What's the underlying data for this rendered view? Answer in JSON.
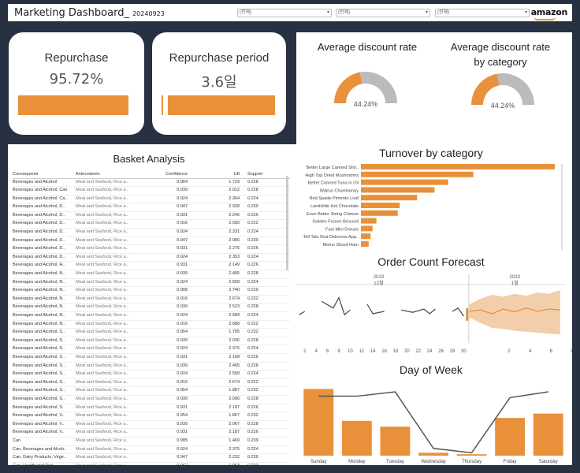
{
  "header": {
    "title": "Marketing Dashboard_",
    "date": "20240923",
    "filters": [
      {
        "value": "(전체)"
      },
      {
        "value": "(전체)"
      },
      {
        "value": "(전체)"
      }
    ],
    "logo": "amazon",
    "logo_accent_color": "#e8913a"
  },
  "kpis": {
    "repurchase": {
      "label": "Repurchase",
      "value": "95.72%",
      "fill_fraction": 0.9572
    },
    "repurchase_period": {
      "label": "Repurchase period",
      "value": "3.6일",
      "fill_fraction": 1.0
    }
  },
  "discount": {
    "average": {
      "title": "Average discount rate",
      "value": "44.24%",
      "fraction": 0.4424
    },
    "by_category": {
      "title_line1": "Average discount rate",
      "title_line2": "by category",
      "value": "44.24%",
      "fraction": 0.4424
    },
    "colors": {
      "filled": "#e8913a",
      "rest": "#bbbbbb"
    }
  },
  "basket": {
    "title": "Basket Analysis",
    "columns": [
      "Consequents",
      "Antecedents",
      "Confidence",
      "Lift",
      "Support"
    ],
    "rows": [
      [
        "Beverages and Alcohol",
        "Meat and Seafood, Rice a..",
        "0.964",
        "1.729",
        "0.228"
      ],
      [
        "Beverages and Alcohol, Can",
        "Meat and Seafood, Rice a..",
        "0.939",
        "2.012",
        "0.228"
      ],
      [
        "Beverages and Alcohol, Ca..",
        "Meat and Seafood, Rice a..",
        "0.924",
        "2.364",
        "0.224"
      ],
      [
        "Beverages and Alcohol, D..",
        "Meat and Seafood, Rice a..",
        "0.947",
        "2.028",
        "0.230"
      ],
      [
        "Beverages and Alcohol, D..",
        "Meat and Seafood, Rice a..",
        "0.931",
        "2.246",
        "0.226"
      ],
      [
        "Beverages and Alcohol, D..",
        "Meat and Seafood, Rice a..",
        "0.916",
        "2.580",
        "0.222"
      ],
      [
        "Beverages and Alcohol, D..",
        "Meat and Seafood, Rice a..",
        "0.924",
        "2.331",
        "0.224"
      ],
      [
        "Beverages and Alcohol, D..",
        "Meat and Seafood, Rice a..",
        "0.947",
        "2.086",
        "0.230"
      ],
      [
        "Beverages and Alcohol, D..",
        "Meat and Seafood, Rice a..",
        "0.931",
        "2.276",
        "0.226"
      ],
      [
        "Beverages and Alcohol, D..",
        "Meat and Seafood, Rice a..",
        "0.924",
        "2.353",
        "0.224"
      ],
      [
        "Beverages and Alcohol, H..",
        "Meat and Seafood, Rice a..",
        "0.931",
        "2.149",
        "0.226"
      ],
      [
        "Beverages and Alcohol, N..",
        "Meat and Seafood, Rice a..",
        "0.939",
        "2.465",
        "0.228"
      ],
      [
        "Beverages and Alcohol, N..",
        "Meat and Seafood, Rice a..",
        "0.924",
        "2.558",
        "0.224"
      ],
      [
        "Beverages and Alcohol, N..",
        "Meat and Seafood, Rice a..",
        "0.908",
        "2.740",
        "0.220"
      ],
      [
        "Beverages and Alcohol, N..",
        "Meat and Seafood, Rice a..",
        "0.916",
        "2.674",
        "0.222"
      ],
      [
        "Beverages and Alcohol, N..",
        "Meat and Seafood, Rice a..",
        "0.939",
        "2.523",
        "0.228"
      ],
      [
        "Beverages and Alcohol, N..",
        "Meat and Seafood, Rice a..",
        "0.924",
        "2.584",
        "0.224"
      ],
      [
        "Beverages and Alcohol, N..",
        "Meat and Seafood, Rice a..",
        "0.916",
        "2.688",
        "0.222"
      ],
      [
        "Beverages and Alcohol, S..",
        "Meat and Seafood, Rice a..",
        "0.954",
        "1.795",
        "0.232"
      ],
      [
        "Beverages and Alcohol, S..",
        "Meat and Seafood, Rice a..",
        "0.939",
        "2.036",
        "0.228"
      ],
      [
        "Beverages and Alcohol, S..",
        "Meat and Seafood, Rice a..",
        "0.924",
        "2.375",
        "0.224"
      ],
      [
        "Beverages and Alcohol, S..",
        "Meat and Seafood, Rice a..",
        "0.931",
        "2.168",
        "0.226"
      ],
      [
        "Beverages and Alcohol, S..",
        "Meat and Seafood, Rice a..",
        "0.939",
        "2.465",
        "0.228"
      ],
      [
        "Beverages and Alcohol, S..",
        "Meat and Seafood, Rice a..",
        "0.924",
        "2.558",
        "0.224"
      ],
      [
        "Beverages and Alcohol, S..",
        "Meat and Seafood, Rice a..",
        "0.916",
        "2.674",
        "0.222"
      ],
      [
        "Beverages and Alcohol, S..",
        "Meat and Seafood, Rice a..",
        "0.954",
        "1.887",
        "0.232"
      ],
      [
        "Beverages and Alcohol, S..",
        "Meat and Seafood, Rice a..",
        "0.939",
        "2.096",
        "0.228"
      ],
      [
        "Beverages and Alcohol, S..",
        "Meat and Seafood, Rice a..",
        "0.931",
        "2.187",
        "0.226"
      ],
      [
        "Beverages and Alcohol, V..",
        "Meat and Seafood, Rice a..",
        "0.954",
        "1.867",
        "0.232"
      ],
      [
        "Beverages and Alcohol, V..",
        "Meat and Seafood, Rice a..",
        "0.939",
        "2.067",
        "0.228"
      ],
      [
        "Beverages and Alcohol, V..",
        "Meat and Seafood, Rice a..",
        "0.931",
        "2.187",
        "0.226"
      ],
      [
        "Can",
        "Meat and Seafood, Rice a..",
        "0.985",
        "1.469",
        "0.239"
      ],
      [
        "Can, Beverages and Alcoh..",
        "Meat and Seafood, Rice a..",
        "0.924",
        "2.375",
        "0.224"
      ],
      [
        "Can, Dairy Products, Vege..",
        "Meat and Seafood, Rice a..",
        "0.947",
        "2.232",
        "0.230"
      ],
      [
        "Can, Health and Diet",
        "Meat and Seafood, Rice a..",
        "0.962",
        "1.953",
        "0.233"
      ],
      [
        "Can, Noodle, Vegetables a..",
        "Meat and Seafood, Rice a..",
        "0.939",
        "2.574",
        "0.228"
      ]
    ]
  },
  "chart_data": [
    {
      "type": "bar",
      "title": "Turnover by category",
      "orientation": "horizontal",
      "categories": [
        "Better Large Canned Shri..",
        "High Top Dried Mushrooms",
        "Better Canned Tuna in Oil",
        "Walrus Chardonnay",
        "Red Spade Pimento Loaf",
        "Landslide Hot Chocolate",
        "Even Better String Cheese",
        "Golden Frozen Broccoli",
        "Fast Mini Donuts",
        "Tell Tale Red Delicious App..",
        "Moms Sliced Ham"
      ],
      "values": [
        100,
        58,
        45,
        38,
        29,
        20,
        19,
        8,
        6,
        5,
        4
      ],
      "color": "#e8913a"
    },
    {
      "type": "line",
      "title": "Order Count Forecast",
      "x_groups": [
        {
          "year": "2019",
          "month": "12월"
        },
        {
          "year": "2020",
          "month": "1월"
        }
      ],
      "x_ticks_2019": [
        "2",
        "4",
        "6",
        "8",
        "10",
        "12",
        "14",
        "16",
        "18",
        "20",
        "22",
        "24",
        "26",
        "28",
        "30"
      ],
      "x_ticks_2020": [
        "2",
        "4",
        "6",
        "8",
        "10"
      ],
      "actual_segments": [
        [
          [
            1,
            48
          ],
          [
            2,
            55
          ]
        ],
        [
          [
            5,
            76
          ],
          [
            7,
            62
          ],
          [
            8,
            84
          ],
          [
            9,
            48
          ],
          [
            10,
            58
          ]
        ],
        [
          [
            13,
            70
          ],
          [
            14,
            50
          ],
          [
            16,
            55
          ]
        ],
        [
          [
            19,
            58
          ],
          [
            21,
            53
          ],
          [
            23,
            60
          ],
          [
            24,
            50
          ],
          [
            25,
            60
          ]
        ],
        [
          [
            28,
            55
          ],
          [
            29,
            62
          ],
          [
            30,
            45
          ]
        ]
      ],
      "forecast_center": [
        [
          31,
          55
        ],
        [
          33,
          58
        ],
        [
          35,
          50
        ],
        [
          37,
          60
        ],
        [
          39,
          54
        ],
        [
          41,
          62
        ],
        [
          43,
          55
        ],
        [
          45,
          60
        ],
        [
          47,
          58
        ]
      ],
      "forecast_upper": [
        [
          31,
          70
        ],
        [
          33,
          82
        ],
        [
          35,
          90
        ],
        [
          37,
          86
        ],
        [
          39,
          92
        ],
        [
          41,
          88
        ],
        [
          43,
          95
        ],
        [
          45,
          92
        ],
        [
          47,
          100
        ]
      ],
      "forecast_lower": [
        [
          31,
          42
        ],
        [
          33,
          30
        ],
        [
          35,
          20
        ],
        [
          37,
          18
        ],
        [
          39,
          14
        ],
        [
          41,
          12
        ],
        [
          43,
          10
        ],
        [
          45,
          8
        ],
        [
          47,
          6
        ]
      ],
      "color": "#e8913a"
    },
    {
      "type": "bar",
      "title": "Day of Week",
      "categories": [
        "Sunday",
        "Monday",
        "Tuesday",
        "Wednesday",
        "Thursday",
        "Friday",
        "Saturday"
      ],
      "values": [
        92,
        48,
        40,
        4,
        2,
        52,
        58
      ],
      "line_values": [
        82,
        82,
        88,
        10,
        4,
        80,
        88
      ],
      "bar_color": "#e8913a",
      "line_color": "#555555"
    }
  ]
}
